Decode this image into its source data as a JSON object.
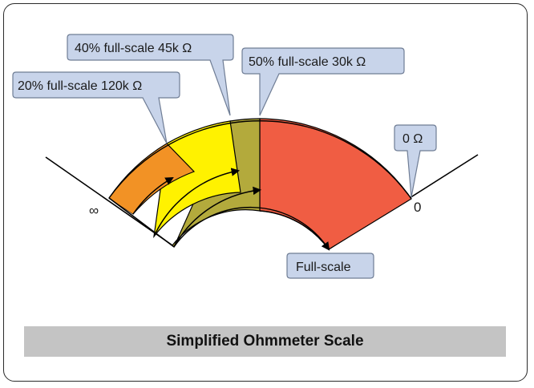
{
  "title": "Simplified Ohmmeter Scale",
  "scale_end_labels": {
    "infinity": "∞",
    "zero": "0"
  },
  "callouts": {
    "pct20": "20% full-scale 120k Ω",
    "pct40": "40% full-scale 45k Ω",
    "pct50": "50% full-scale 30k Ω",
    "zero_ohm": "0 Ω",
    "full_scale": "Full-scale"
  },
  "colors": {
    "band_20pct": "#f29225",
    "band_40pct": "#fff200",
    "band_50pct": "#b3aa3c",
    "band_full": "#f05d43",
    "callout_fill": "#c8d4ea",
    "callout_border": "#6f7d95",
    "caption_bg": "#c4c4c4"
  }
}
